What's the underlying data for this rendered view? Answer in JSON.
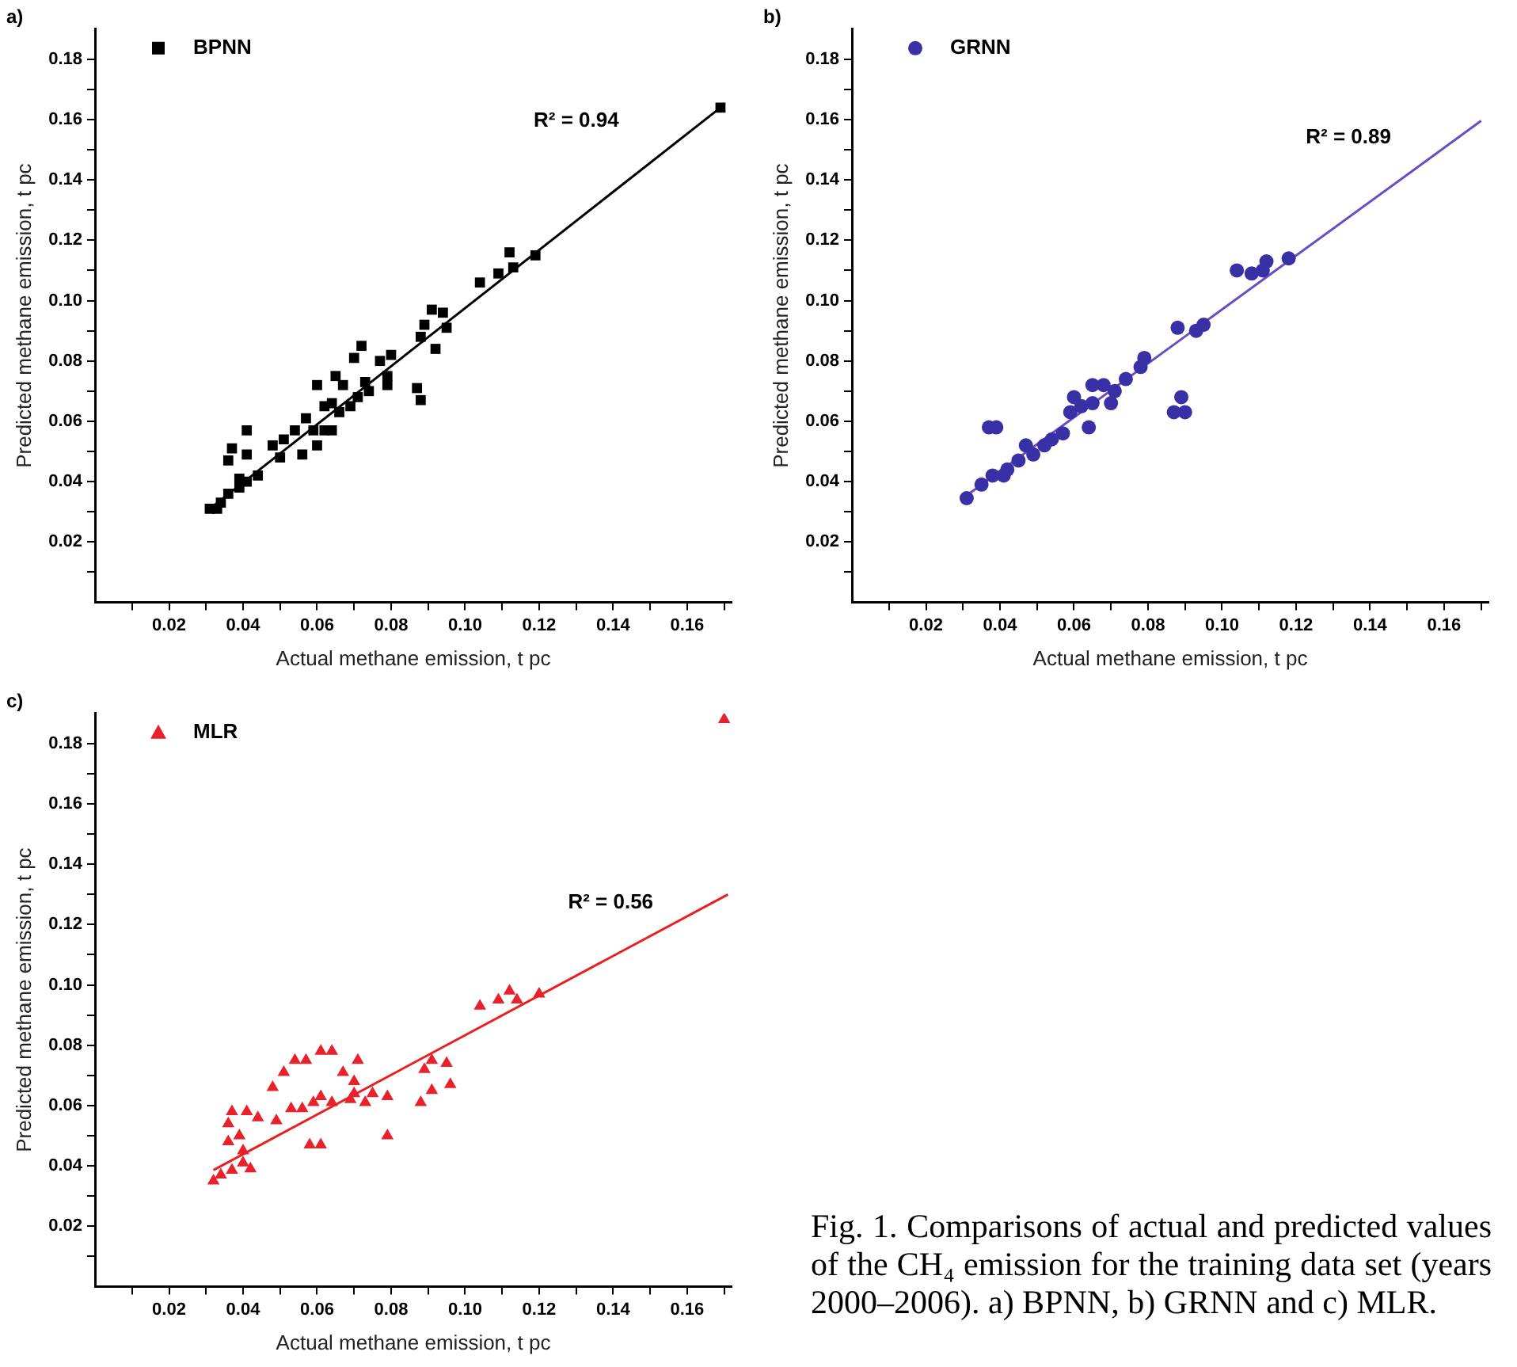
{
  "chart_data": [
    {
      "type": "scatter",
      "title": "a)",
      "xlabel": "Actual methane emission, t pc",
      "ylabel": "Predicted methane emission, t pc",
      "legend": "top left",
      "grid": false,
      "xlim": [
        0,
        0.172
      ],
      "ylim": [
        0,
        0.19
      ],
      "xticks": [
        {
          "value": 0.01,
          "label": null
        },
        0.02,
        {
          "value": 0.03,
          "label": null
        },
        0.04,
        {
          "value": 0.05,
          "label": null
        },
        0.06,
        {
          "value": 0.07,
          "label": null
        },
        0.08,
        {
          "value": 0.09,
          "label": null
        },
        {
          "value": 0.1,
          "label": "0.10"
        },
        {
          "value": 0.11,
          "label": null
        },
        0.12,
        {
          "value": 0.13,
          "label": null
        },
        0.14,
        {
          "value": 0.15,
          "label": null
        },
        0.16,
        {
          "value": 0.17,
          "label": null
        }
      ],
      "yticks": [
        {
          "value": 0.01,
          "label": null
        },
        0.02,
        {
          "value": 0.03,
          "label": null
        },
        0.04,
        {
          "value": 0.05,
          "label": null
        },
        0.06,
        {
          "value": 0.07,
          "label": null
        },
        0.08,
        {
          "value": 0.09,
          "label": null
        },
        {
          "value": 0.1,
          "label": "0.10"
        },
        {
          "value": 0.11,
          "label": null
        },
        0.12,
        {
          "value": 0.13,
          "label": null
        },
        0.14,
        {
          "value": 0.15,
          "label": null
        },
        0.16,
        {
          "value": 0.17,
          "label": null
        },
        0.18
      ],
      "annotations": [
        "R² = 0.94"
      ],
      "series": [
        {
          "name": "BPNN",
          "color": "#000000",
          "marker": "square",
          "x": [
            0.169,
            0.119,
            0.112,
            0.109,
            0.113,
            0.104,
            0.091,
            0.094,
            0.095,
            0.089,
            0.088,
            0.092,
            0.087,
            0.088,
            0.072,
            0.07,
            0.077,
            0.08,
            0.079,
            0.079,
            0.074,
            0.071,
            0.067,
            0.065,
            0.06,
            0.064,
            0.062,
            0.057,
            0.059,
            0.062,
            0.064,
            0.06,
            0.056,
            0.054,
            0.051,
            0.048,
            0.05,
            0.041,
            0.037,
            0.036,
            0.041,
            0.044,
            0.041,
            0.039,
            0.036,
            0.039,
            0.034,
            0.031,
            0.033,
            0.069,
            0.073,
            0.066
          ],
          "values": [
            0.164,
            0.115,
            0.116,
            0.109,
            0.111,
            0.106,
            0.097,
            0.096,
            0.091,
            0.092,
            0.088,
            0.084,
            0.071,
            0.067,
            0.085,
            0.081,
            0.08,
            0.082,
            0.075,
            0.072,
            0.07,
            0.068,
            0.072,
            0.075,
            0.072,
            0.066,
            0.065,
            0.061,
            0.057,
            0.057,
            0.057,
            0.052,
            0.049,
            0.057,
            0.054,
            0.052,
            0.048,
            0.057,
            0.051,
            0.047,
            0.049,
            0.042,
            0.04,
            0.038,
            0.036,
            0.041,
            0.033,
            0.031,
            0.031,
            0.065,
            0.073,
            0.063
          ]
        },
        {
          "type": "line",
          "color": "#000000",
          "x": [
            0.031,
            0.169
          ],
          "values": [
            0.031,
            0.164
          ]
        }
      ]
    },
    {
      "type": "scatter",
      "title": "b)",
      "xlabel": "Actual methane emission, t pc",
      "ylabel": "Predicted methane emission, t pc",
      "legend": "top left",
      "grid": false,
      "xlim": [
        0,
        0.172
      ],
      "ylim": [
        0,
        0.19
      ],
      "xticks": [
        {
          "value": 0.01,
          "label": null
        },
        0.02,
        {
          "value": 0.03,
          "label": null
        },
        0.04,
        {
          "value": 0.05,
          "label": null
        },
        0.06,
        {
          "value": 0.07,
          "label": null
        },
        0.08,
        {
          "value": 0.09,
          "label": null
        },
        {
          "value": 0.1,
          "label": "0.10"
        },
        {
          "value": 0.11,
          "label": null
        },
        0.12,
        {
          "value": 0.13,
          "label": null
        },
        0.14,
        {
          "value": 0.15,
          "label": null
        },
        0.16,
        {
          "value": 0.17,
          "label": null
        }
      ],
      "yticks": [
        {
          "value": 0.01,
          "label": null
        },
        0.02,
        {
          "value": 0.03,
          "label": null
        },
        0.04,
        {
          "value": 0.05,
          "label": null
        },
        0.06,
        {
          "value": 0.07,
          "label": null
        },
        0.08,
        {
          "value": 0.09,
          "label": null
        },
        {
          "value": 0.1,
          "label": "0.10"
        },
        {
          "value": 0.11,
          "label": null
        },
        0.12,
        {
          "value": 0.13,
          "label": null
        },
        0.14,
        {
          "value": 0.15,
          "label": null
        },
        0.16,
        {
          "value": 0.17,
          "label": null
        },
        0.18
      ],
      "annotations": [
        "R² = 0.89"
      ],
      "series": [
        {
          "name": "GRNN",
          "color": "#3a30a6",
          "marker": "circle",
          "x": [
            0.118,
            0.112,
            0.108,
            0.111,
            0.104,
            0.095,
            0.093,
            0.088,
            0.089,
            0.087,
            0.09,
            0.079,
            0.078,
            0.074,
            0.071,
            0.068,
            0.065,
            0.065,
            0.062,
            0.06,
            0.059,
            0.064,
            0.057,
            0.054,
            0.052,
            0.049,
            0.047,
            0.039,
            0.037,
            0.042,
            0.038,
            0.035,
            0.031,
            0.041,
            0.045,
            0.07
          ],
          "values": [
            0.114,
            0.113,
            0.109,
            0.11,
            0.11,
            0.092,
            0.09,
            0.091,
            0.068,
            0.063,
            0.063,
            0.081,
            0.078,
            0.074,
            0.07,
            0.072,
            0.072,
            0.066,
            0.065,
            0.068,
            0.063,
            0.058,
            0.056,
            0.054,
            0.052,
            0.049,
            0.052,
            0.058,
            0.058,
            0.044,
            0.042,
            0.039,
            0.0345,
            0.042,
            0.047,
            0.066
          ]
        },
        {
          "type": "line",
          "color": "#6a4cc4",
          "x": [
            0.03,
            0.17
          ],
          "values": [
            0.0345,
            0.1596
          ]
        }
      ]
    },
    {
      "type": "scatter",
      "title": "c)",
      "xlabel": "Actual methane emission, t pc",
      "ylabel": "Predicted methane emission, t pc",
      "legend": "top left",
      "grid": false,
      "xlim": [
        0,
        0.172
      ],
      "ylim": [
        0,
        0.19
      ],
      "xticks": [
        {
          "value": 0.01,
          "label": null
        },
        0.02,
        {
          "value": 0.03,
          "label": null
        },
        0.04,
        {
          "value": 0.05,
          "label": null
        },
        0.06,
        {
          "value": 0.07,
          "label": null
        },
        0.08,
        {
          "value": 0.09,
          "label": null
        },
        {
          "value": 0.1,
          "label": "0.10"
        },
        {
          "value": 0.11,
          "label": null
        },
        0.12,
        {
          "value": 0.13,
          "label": null
        },
        0.14,
        {
          "value": 0.15,
          "label": null
        },
        0.16,
        {
          "value": 0.17,
          "label": null
        }
      ],
      "yticks": [
        {
          "value": 0.01,
          "label": null
        },
        0.02,
        {
          "value": 0.03,
          "label": null
        },
        0.04,
        {
          "value": 0.05,
          "label": null
        },
        0.06,
        {
          "value": 0.07,
          "label": null
        },
        0.08,
        {
          "value": 0.09,
          "label": null
        },
        {
          "value": 0.1,
          "label": "0.10"
        },
        {
          "value": 0.11,
          "label": null
        },
        0.12,
        {
          "value": 0.13,
          "label": null
        },
        0.14,
        {
          "value": 0.15,
          "label": null
        },
        0.16,
        {
          "value": 0.17,
          "label": null
        },
        0.18
      ],
      "annotations": [
        "R² = 0.56",
        "Fig. 1. Comparisons of actual and predicted values of the CH₄ emission for the training data set (years 2000–2006). a) BPNN, b) GRNN and c) MLR."
      ],
      "series": [
        {
          "name": "MLR",
          "color": "#e8212a",
          "marker": "triangle",
          "x": [
            0.17,
            0.12,
            0.112,
            0.109,
            0.104,
            0.114,
            0.095,
            0.091,
            0.089,
            0.096,
            0.091,
            0.088,
            0.079,
            0.079,
            0.075,
            0.071,
            0.07,
            0.067,
            0.064,
            0.061,
            0.061,
            0.059,
            0.056,
            0.053,
            0.049,
            0.048,
            0.051,
            0.054,
            0.057,
            0.061,
            0.058,
            0.064,
            0.069,
            0.073,
            0.037,
            0.041,
            0.044,
            0.036,
            0.036,
            0.04,
            0.042,
            0.04,
            0.037,
            0.034,
            0.032,
            0.039,
            0.07
          ],
          "values": [
            0.188,
            0.097,
            0.098,
            0.095,
            0.093,
            0.095,
            0.074,
            0.075,
            0.072,
            0.067,
            0.065,
            0.061,
            0.05,
            0.063,
            0.064,
            0.075,
            0.068,
            0.071,
            0.078,
            0.078,
            0.063,
            0.061,
            0.059,
            0.059,
            0.055,
            0.066,
            0.071,
            0.075,
            0.075,
            0.047,
            0.047,
            0.061,
            0.062,
            0.061,
            0.058,
            0.058,
            0.056,
            0.054,
            0.048,
            0.045,
            0.039,
            0.041,
            0.0386,
            0.037,
            0.035,
            0.05,
            0.064
          ]
        },
        {
          "type": "line",
          "color": "#e82020",
          "x": [
            0.032,
            0.171
          ],
          "values": [
            0.0386,
            0.13
          ]
        }
      ]
    }
  ]
}
